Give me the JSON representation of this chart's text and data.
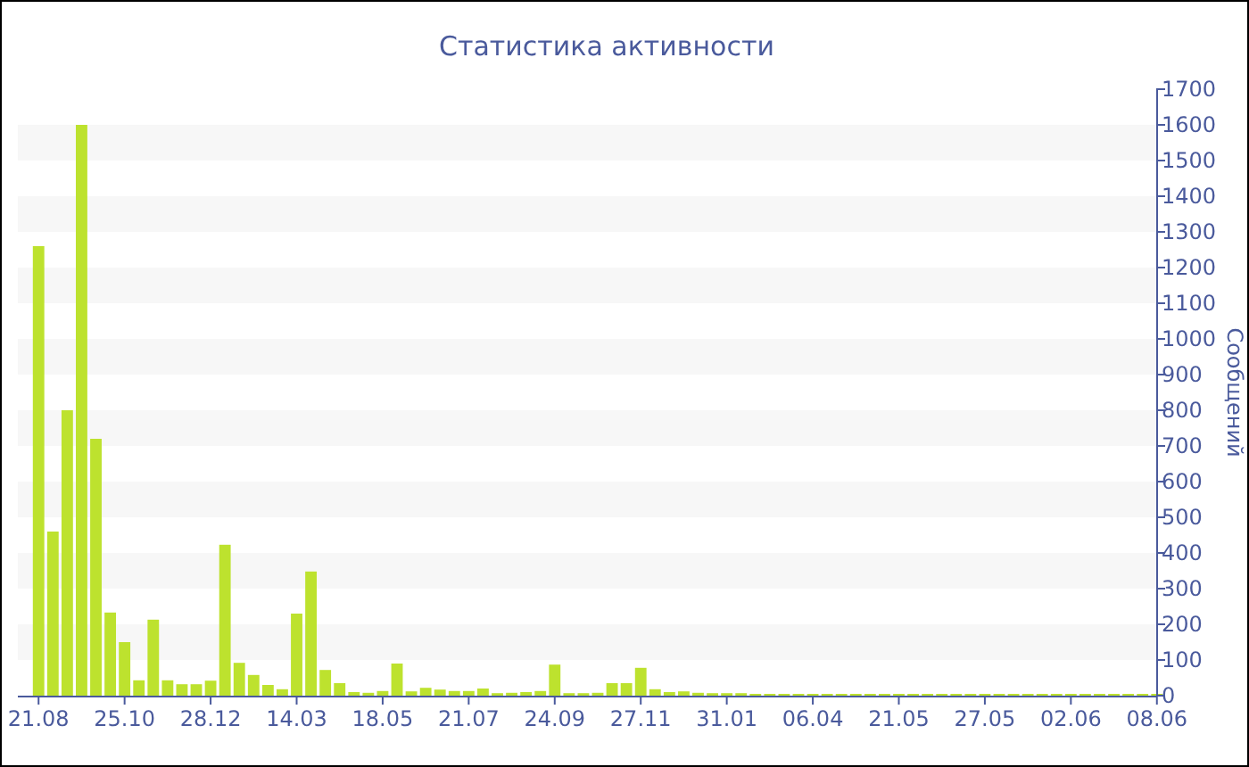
{
  "chart_data": {
    "type": "bar",
    "title": "Статистика активности",
    "ylabel": "Сообщений",
    "categories": [
      "21.08",
      null,
      null,
      null,
      null,
      null,
      "25.10",
      null,
      null,
      null,
      null,
      null,
      "28.12",
      null,
      null,
      null,
      null,
      null,
      "14.03",
      null,
      null,
      null,
      null,
      null,
      "18.05",
      null,
      null,
      null,
      null,
      null,
      "21.07",
      null,
      null,
      null,
      null,
      null,
      "24.09",
      null,
      null,
      null,
      null,
      null,
      "27.11",
      null,
      null,
      null,
      null,
      null,
      "31.01",
      null,
      null,
      null,
      null,
      null,
      "06.04",
      null,
      null,
      null,
      null,
      null,
      "21.05",
      null,
      null,
      null,
      null,
      null,
      "27.05",
      null,
      null,
      null,
      null,
      null,
      "02.06",
      null,
      null,
      null,
      null,
      null,
      "08.06"
    ],
    "values": [
      1260,
      460,
      800,
      1600,
      720,
      233,
      150,
      43,
      213,
      43,
      32,
      32,
      42,
      423,
      92,
      58,
      30,
      18,
      230,
      348,
      72,
      35,
      10,
      8,
      13,
      90,
      12,
      22,
      17,
      13,
      13,
      20,
      7,
      8,
      10,
      13,
      87,
      7,
      7,
      8,
      35,
      35,
      78,
      18,
      10,
      12,
      8,
      7,
      7,
      7,
      5,
      5,
      5,
      5,
      5,
      5,
      5,
      5,
      5,
      5,
      5,
      5,
      5,
      5,
      5,
      5,
      5,
      5,
      5,
      5,
      5,
      5,
      5,
      5,
      5,
      5,
      5,
      5,
      5
    ],
    "color": "#bde22e",
    "ylim": [
      0,
      1700
    ],
    "yticks": [
      0,
      100,
      200,
      300,
      400,
      500,
      600,
      700,
      800,
      900,
      1000,
      1100,
      1200,
      1300,
      1400,
      1500,
      1600,
      1700
    ],
    "bands": [
      {
        "axis": "y",
        "from": 100,
        "to": 200,
        "color": "#f7f7f7"
      },
      {
        "axis": "y",
        "from": 300,
        "to": 400,
        "color": "#f7f7f7"
      },
      {
        "axis": "y",
        "from": 500,
        "to": 600,
        "color": "#f7f7f7"
      },
      {
        "axis": "y",
        "from": 700,
        "to": 800,
        "color": "#f7f7f7"
      },
      {
        "axis": "y",
        "from": 900,
        "to": 1000,
        "color": "#f7f7f7"
      },
      {
        "axis": "y",
        "from": 1100,
        "to": 1200,
        "color": "#f7f7f7"
      },
      {
        "axis": "y",
        "from": 1300,
        "to": 1400,
        "color": "#f7f7f7"
      },
      {
        "axis": "y",
        "from": 1500,
        "to": 1600,
        "color": "#f7f7f7"
      }
    ]
  }
}
